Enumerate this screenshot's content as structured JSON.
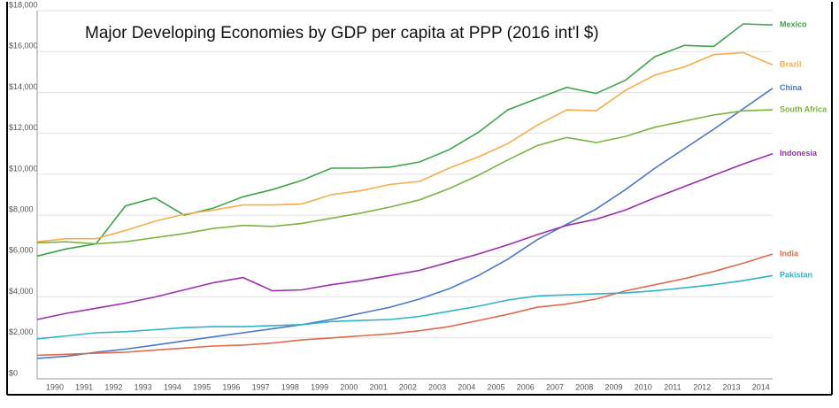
{
  "chart_data": {
    "type": "line",
    "title": "Major Developing Economies by GDP per capita at PPP (2016 int'l $)",
    "categories": [
      "1990",
      "1991",
      "1992",
      "1993",
      "1994",
      "1995",
      "1996",
      "1997",
      "1998",
      "1999",
      "2000",
      "2001",
      "2002",
      "2003",
      "2004",
      "2005",
      "2006",
      "2007",
      "2008",
      "2009",
      "2010",
      "2011",
      "2012",
      "2013",
      "2014",
      null
    ],
    "ylim": [
      0,
      18000
    ],
    "yticks": [
      {
        "value": 0,
        "label": "$0"
      },
      {
        "value": 2000,
        "label": "$2,000"
      },
      {
        "value": 4000,
        "label": "$4,000"
      },
      {
        "value": 6000,
        "label": "$6,000"
      },
      {
        "value": 8000,
        "label": "$8,000"
      },
      {
        "value": 10000,
        "label": "$10,000"
      },
      {
        "value": 12000,
        "label": "$12,000"
      },
      {
        "value": 14000,
        "label": "$14,000"
      },
      {
        "value": 16000,
        "label": "$16,000"
      },
      {
        "value": 18000,
        "label": "$18,000"
      }
    ],
    "grid": true,
    "series": [
      {
        "name": "Mexico",
        "color": "#3fa54a",
        "values": [
          6000,
          6350,
          6600,
          8450,
          8850,
          8000,
          8350,
          8900,
          9250,
          9700,
          10300,
          10300,
          10350,
          10600,
          11200,
          12050,
          13150,
          13700,
          14250,
          13950,
          14600,
          15750,
          16300,
          16250,
          17350,
          17300
        ]
      },
      {
        "name": "Brazil",
        "color": "#f5ae4c",
        "values": [
          6700,
          6850,
          6850,
          7250,
          7700,
          8050,
          8250,
          8500,
          8500,
          8550,
          9000,
          9200,
          9500,
          9650,
          10300,
          10850,
          11500,
          12400,
          13150,
          13100,
          14100,
          14850,
          15250,
          15850,
          15950,
          15350
        ]
      },
      {
        "name": "China",
        "color": "#4a78c8",
        "values": [
          1000,
          1100,
          1300,
          1450,
          1650,
          1850,
          2050,
          2250,
          2450,
          2650,
          2900,
          3200,
          3500,
          3900,
          4400,
          5050,
          5850,
          6800,
          7550,
          8300,
          9250,
          10300,
          11250,
          12200,
          13200,
          14200
        ]
      },
      {
        "name": "South Africa",
        "color": "#7cb342",
        "values": [
          6650,
          6700,
          6600,
          6700,
          6900,
          7100,
          7350,
          7500,
          7450,
          7600,
          7850,
          8100,
          8400,
          8750,
          9300,
          9950,
          10700,
          11400,
          11800,
          11550,
          11850,
          12300,
          12600,
          12900,
          13100,
          13150
        ]
      },
      {
        "name": "Indonesia",
        "color": "#9b2fae",
        "values": [
          2900,
          3200,
          3450,
          3700,
          4000,
          4350,
          4700,
          4950,
          4300,
          4350,
          4600,
          4800,
          5050,
          5300,
          5700,
          6100,
          6550,
          7050,
          7500,
          7800,
          8250,
          8850,
          9400,
          9950,
          10500,
          11000
        ]
      },
      {
        "name": "India",
        "color": "#de6b4a",
        "values": [
          1150,
          1200,
          1250,
          1300,
          1400,
          1500,
          1600,
          1650,
          1750,
          1900,
          2000,
          2100,
          2200,
          2350,
          2550,
          2850,
          3150,
          3500,
          3650,
          3900,
          4300,
          4600,
          4900,
          5250,
          5650,
          6100
        ]
      },
      {
        "name": "Pakistan",
        "color": "#2fb3c8",
        "values": [
          1950,
          2100,
          2250,
          2300,
          2400,
          2500,
          2550,
          2550,
          2600,
          2650,
          2800,
          2850,
          2900,
          3050,
          3300,
          3550,
          3850,
          4050,
          4100,
          4150,
          4200,
          4300,
          4450,
          4600,
          4800,
          5050
        ]
      }
    ]
  }
}
